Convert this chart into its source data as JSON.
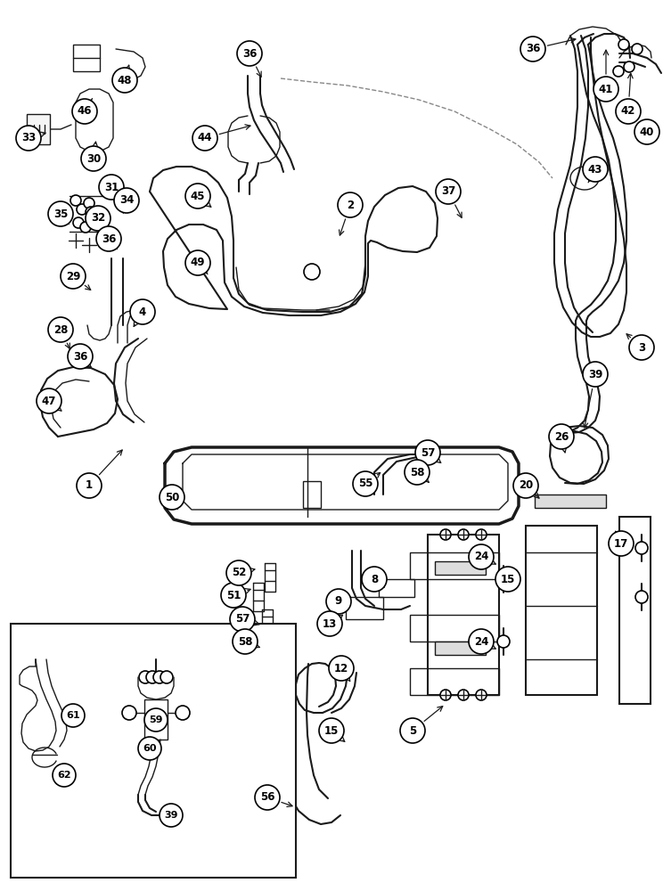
{
  "bg_color": "#ffffff",
  "line_color": "#1a1a1a",
  "fig_width": 7.44,
  "fig_height": 10.0,
  "dpi": 100,
  "circle_r": 0.03,
  "font_size": 8.5
}
